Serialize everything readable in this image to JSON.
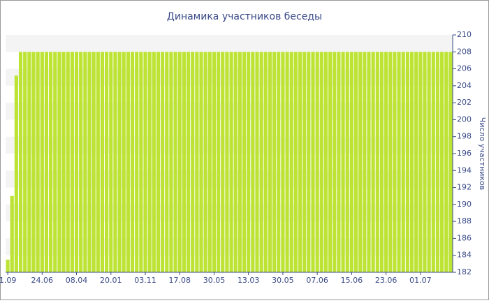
{
  "chart_data": {
    "type": "bar",
    "title": "Динамика участников беседы",
    "y_label": "Число участников",
    "categories": [
      "1.09",
      null,
      null,
      null,
      null,
      null,
      null,
      null,
      "24.06",
      null,
      null,
      null,
      null,
      null,
      null,
      null,
      "08.04",
      null,
      null,
      null,
      null,
      null,
      null,
      null,
      "20.01",
      null,
      null,
      null,
      null,
      null,
      null,
      null,
      "03.11",
      null,
      null,
      null,
      null,
      null,
      null,
      null,
      "17.08",
      null,
      null,
      null,
      null,
      null,
      null,
      null,
      "30.05",
      null,
      null,
      null,
      null,
      null,
      null,
      null,
      "13.03",
      null,
      null,
      null,
      null,
      null,
      null,
      null,
      "30.05",
      null,
      null,
      null,
      null,
      null,
      null,
      null,
      "07.06",
      null,
      null,
      null,
      null,
      null,
      null,
      null,
      "15.06",
      null,
      null,
      null,
      null,
      null,
      null,
      null,
      "23.06",
      null,
      null,
      null,
      null,
      null,
      null,
      null,
      "01.07",
      null,
      null,
      null,
      null,
      null,
      null,
      null
    ],
    "values": [
      183.5,
      191,
      205.2,
      208,
      208,
      208,
      208,
      208,
      208,
      208,
      208,
      208,
      208,
      208,
      208,
      208,
      208,
      208,
      208,
      208,
      208,
      208,
      208,
      208,
      208,
      208,
      208,
      208,
      208,
      208,
      208,
      208,
      208,
      208,
      208,
      208,
      208,
      208,
      208,
      208,
      208,
      208,
      208,
      208,
      208,
      208,
      208,
      208,
      208,
      208,
      208,
      208,
      208,
      208,
      208,
      208,
      208,
      208,
      208,
      208,
      208,
      208,
      208,
      208,
      208,
      208,
      208,
      208,
      208,
      208,
      208,
      208,
      208,
      208,
      208,
      208,
      208,
      208,
      208,
      208,
      208,
      208,
      208,
      208,
      208,
      208,
      208,
      208,
      208,
      208,
      208,
      208,
      208,
      208,
      208,
      208,
      208,
      208,
      208,
      208,
      208,
      208,
      208,
      208
    ],
    "color": "#bde335",
    "ylim": [
      182,
      210
    ],
    "yticks": [
      182,
      184,
      186,
      188,
      190,
      192,
      194,
      196,
      198,
      200,
      202,
      204,
      206,
      208,
      210
    ],
    "grid": true
  }
}
